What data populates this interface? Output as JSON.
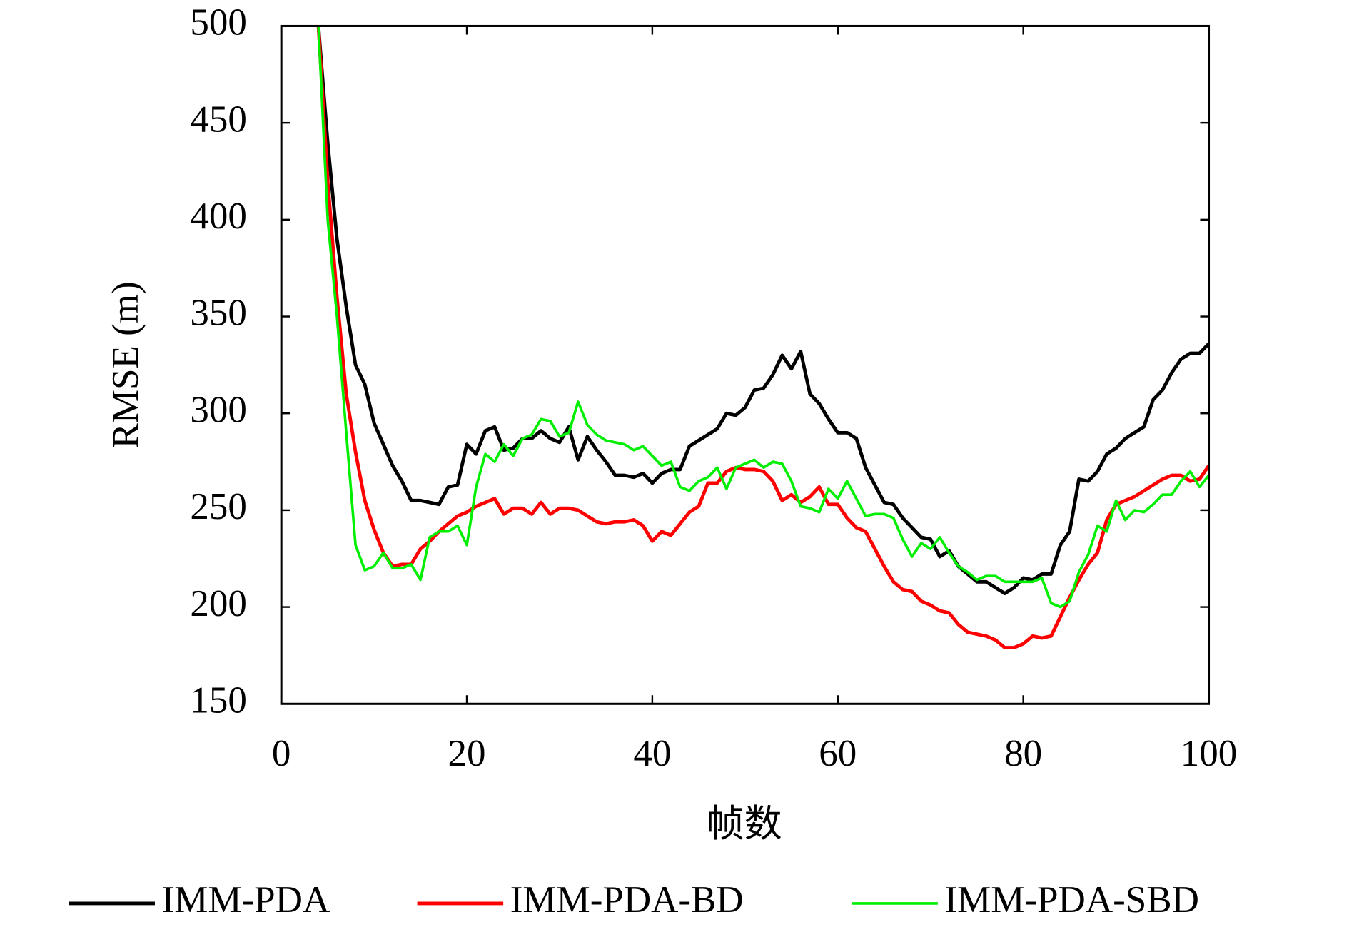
{
  "chart_data": {
    "type": "line",
    "xlabel": "帧数",
    "ylabel": "RMSE (m)",
    "xlim": [
      0,
      100
    ],
    "xticks": [
      0,
      20,
      40,
      60,
      80,
      100
    ],
    "ylim": [
      150,
      500
    ],
    "yticks": [
      150,
      200,
      250,
      300,
      350,
      400,
      450,
      500
    ],
    "legend": "bottom",
    "x": [
      4,
      5,
      6,
      7,
      8,
      9,
      10,
      11,
      12,
      13,
      14,
      15,
      16,
      17,
      18,
      19,
      20,
      21,
      22,
      23,
      24,
      25,
      26,
      27,
      28,
      29,
      30,
      31,
      32,
      33,
      34,
      35,
      36,
      37,
      38,
      39,
      40,
      41,
      42,
      43,
      44,
      45,
      46,
      47,
      48,
      49,
      50,
      51,
      52,
      53,
      54,
      55,
      56,
      57,
      58,
      59,
      60,
      61,
      62,
      63,
      64,
      65,
      66,
      67,
      68,
      69,
      70,
      71,
      72,
      73,
      74,
      75,
      76,
      77,
      78,
      79,
      80,
      81,
      82,
      83,
      84,
      85,
      86,
      87,
      88,
      89,
      90,
      91,
      92,
      93,
      94,
      95,
      96,
      97,
      98,
      99,
      100
    ],
    "series": [
      {
        "name": "IMM-PDA",
        "color": "#000000",
        "values": [
          500,
          440,
          390,
          355,
          325,
          315,
          295,
          284,
          273,
          265,
          255,
          255,
          254,
          253,
          262,
          263,
          284,
          279,
          291,
          293,
          281,
          282,
          287,
          287,
          291,
          287,
          285,
          293,
          276,
          288,
          281,
          275,
          268,
          268,
          267,
          269,
          264,
          269,
          271,
          271,
          283,
          286,
          289,
          292,
          300,
          299,
          303,
          312,
          313,
          320,
          330,
          323,
          332,
          310,
          305,
          297,
          290,
          290,
          287,
          272,
          263,
          254,
          253,
          246,
          241,
          236,
          235,
          226,
          229,
          221,
          217,
          213,
          213,
          210,
          207,
          210,
          215,
          214,
          217,
          217,
          232,
          239,
          266,
          265,
          270,
          279,
          282,
          287,
          290,
          293,
          307,
          312,
          321,
          328,
          331,
          331,
          336
        ]
      },
      {
        "name": "IMM-PDA-BD",
        "color": "#ff0000",
        "values": [
          500,
          420,
          360,
          310,
          280,
          255,
          240,
          228,
          221,
          222,
          222,
          230,
          234,
          239,
          243,
          247,
          249,
          252,
          254,
          256,
          248,
          251,
          251,
          248,
          254,
          248,
          251,
          251,
          250,
          247,
          244,
          243,
          244,
          244,
          245,
          242,
          234,
          239,
          237,
          243,
          249,
          252,
          264,
          264,
          270,
          272,
          271,
          271,
          270,
          265,
          255,
          258,
          254,
          257,
          262,
          253,
          253,
          246,
          241,
          239,
          230,
          221,
          213,
          209,
          208,
          203,
          201,
          198,
          197,
          191,
          187,
          186,
          185,
          183,
          179,
          179,
          181,
          185,
          184,
          185,
          195,
          205,
          214,
          222,
          228,
          245,
          253,
          255,
          257,
          260,
          263,
          266,
          268,
          268,
          265,
          266,
          273
        ]
      },
      {
        "name": "IMM-PDA-SBD",
        "color": "#00ee00",
        "values": [
          500,
          400,
          350,
          290,
          232,
          219,
          221,
          228,
          220,
          220,
          222,
          214,
          236,
          239,
          239,
          242,
          232,
          262,
          279,
          275,
          284,
          278,
          287,
          289,
          297,
          296,
          288,
          290,
          306,
          294,
          289,
          286,
          285,
          284,
          281,
          283,
          278,
          273,
          275,
          262,
          260,
          265,
          267,
          272,
          261,
          272,
          274,
          276,
          272,
          275,
          274,
          265,
          252,
          251,
          249,
          261,
          256,
          265,
          256,
          247,
          248,
          248,
          246,
          235,
          226,
          233,
          230,
          236,
          228,
          221,
          218,
          214,
          216,
          216,
          213,
          213,
          213,
          213,
          215,
          202,
          200,
          203,
          218,
          227,
          242,
          239,
          255,
          245,
          250,
          249,
          253,
          258,
          258,
          265,
          270,
          262,
          268
        ]
      }
    ]
  }
}
